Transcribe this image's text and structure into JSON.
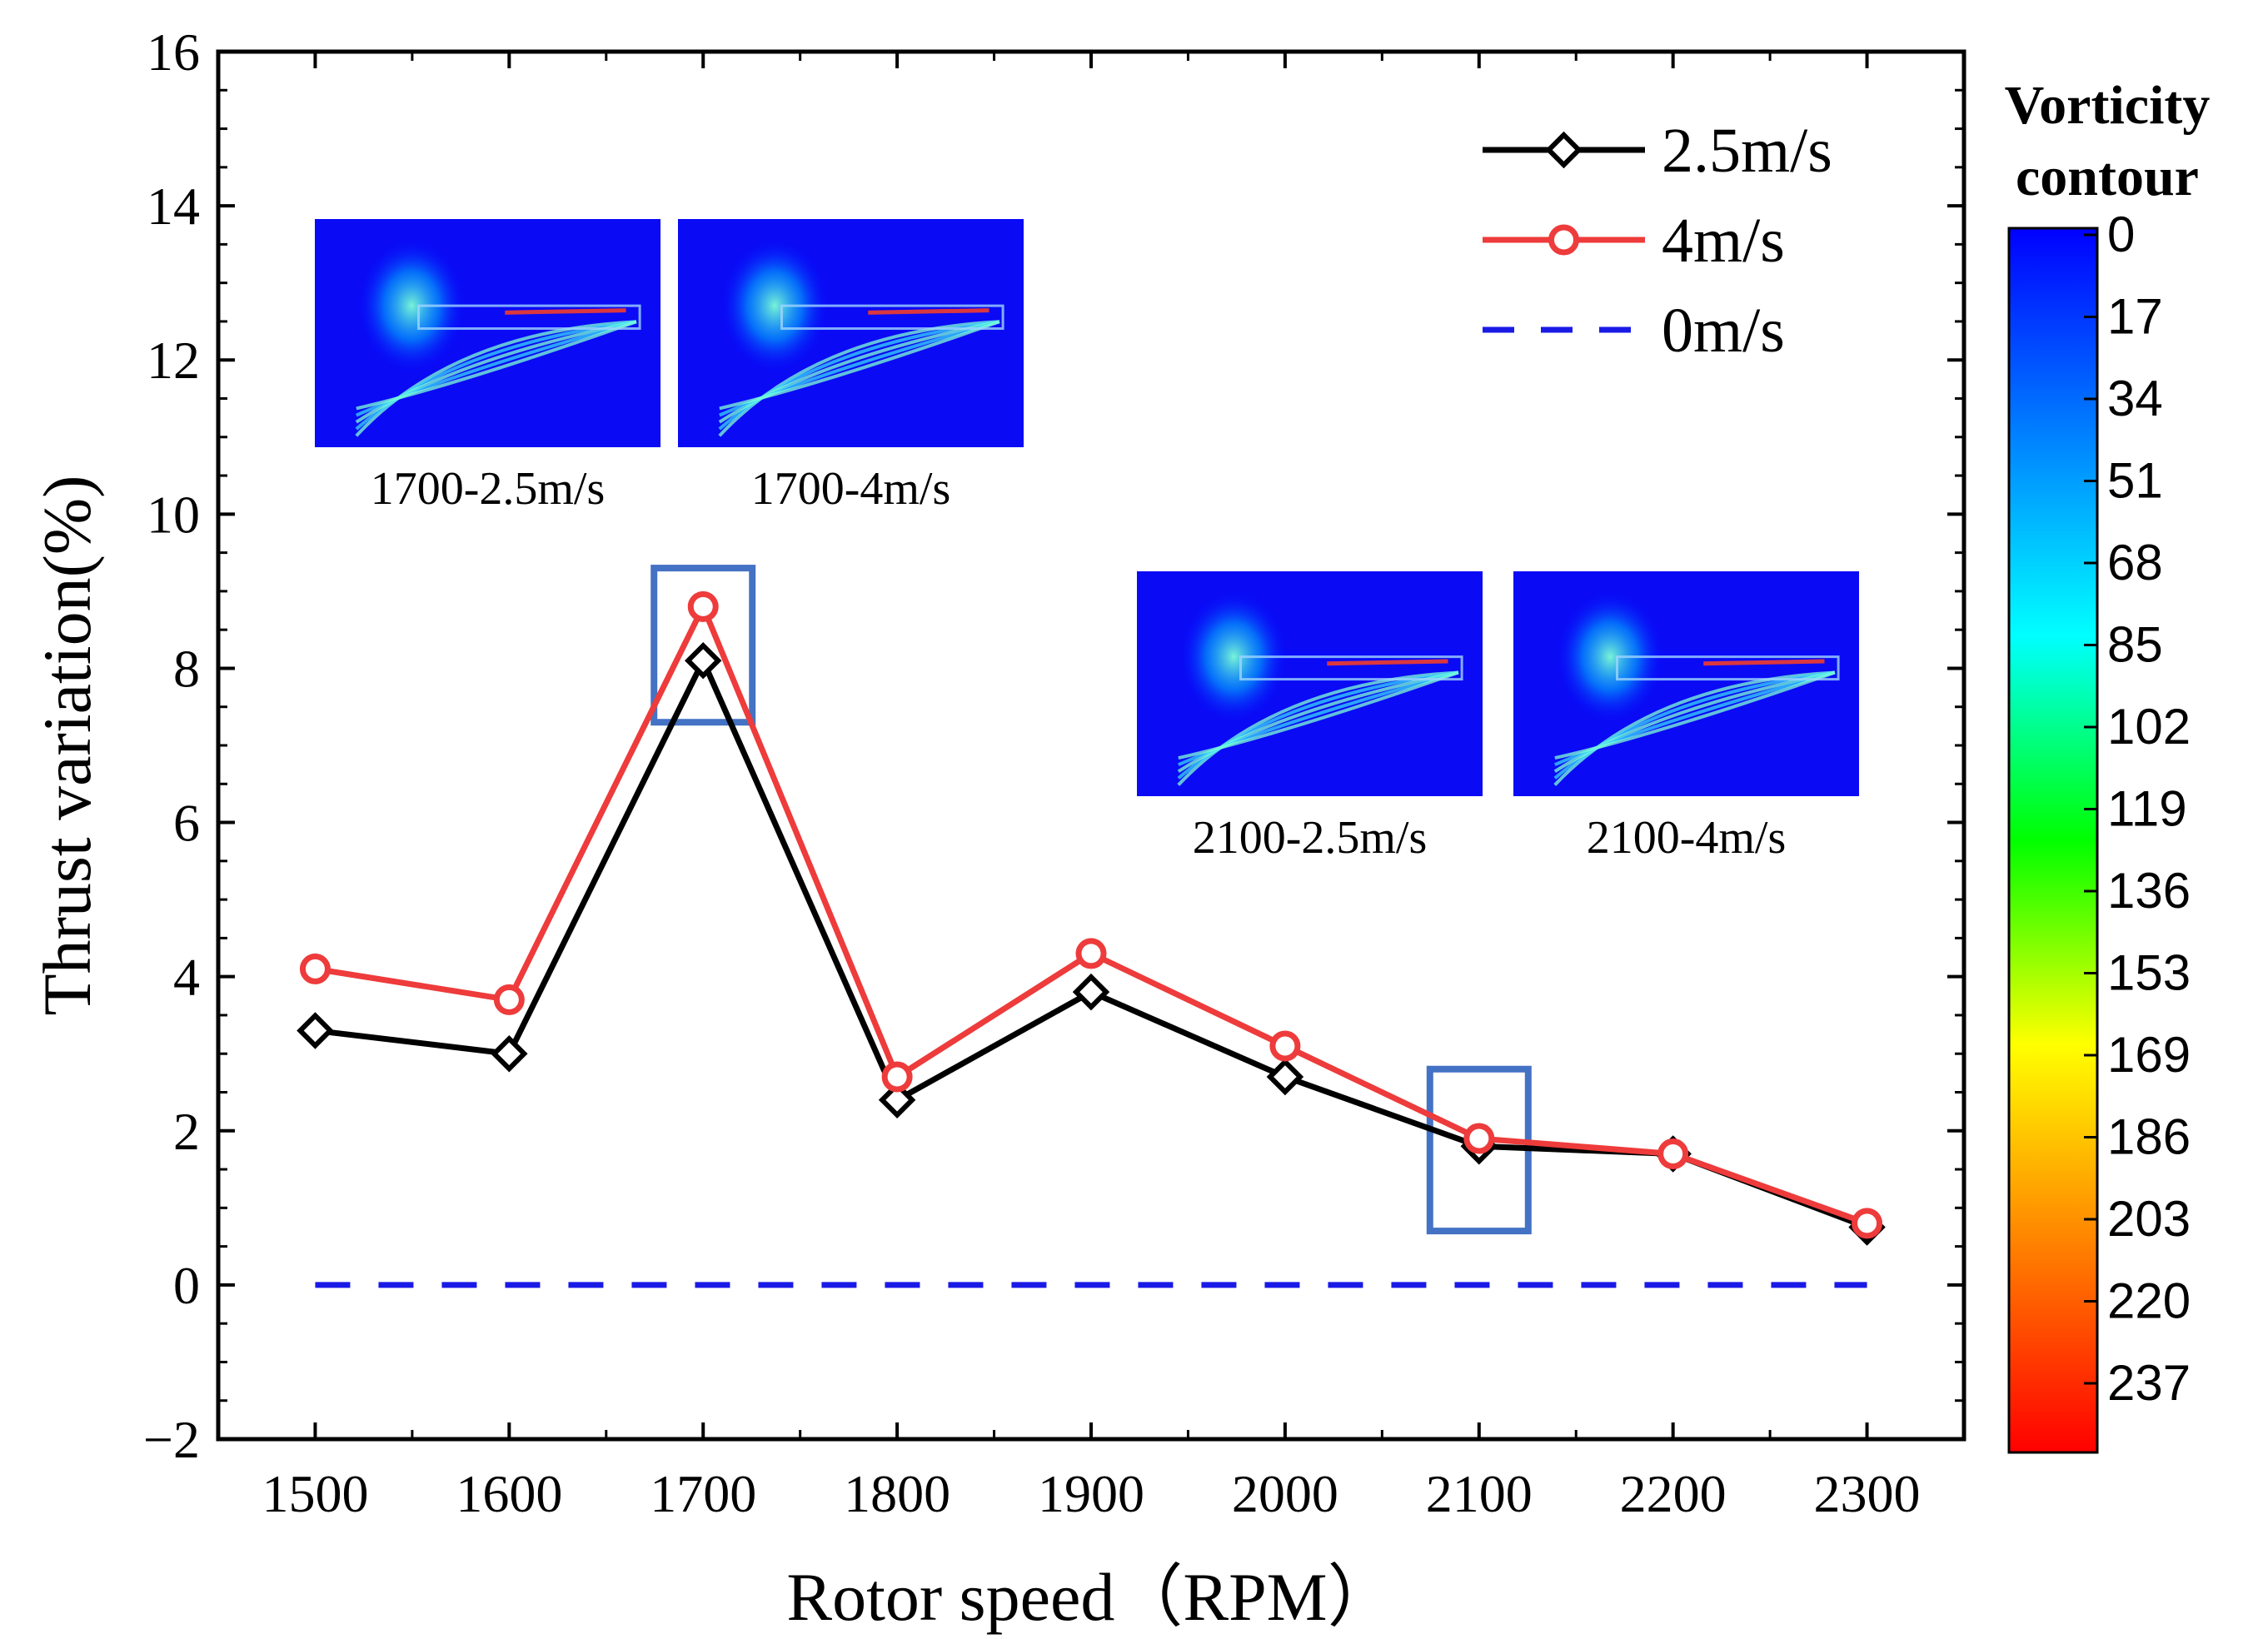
{
  "chart_data": {
    "type": "line",
    "xlabel": "Rotor speed（RPM）",
    "ylabel": "Thrust variation(%)",
    "x": [
      1500,
      1600,
      1700,
      1800,
      1900,
      2000,
      2100,
      2200,
      2300
    ],
    "xlim": [
      1450,
      2350
    ],
    "ylim": [
      -2,
      16
    ],
    "xticks": [
      "1500",
      "1600",
      "1700",
      "1800",
      "1900",
      "2000",
      "2100",
      "2200",
      "2300"
    ],
    "yticks": [
      "−2",
      "0",
      "2",
      "4",
      "6",
      "8",
      "10",
      "12",
      "14",
      "16"
    ],
    "grid": false,
    "legend_position": "top-right",
    "series": [
      {
        "name": "2.5m/s",
        "color": "#000000",
        "marker": "diamond",
        "style": "solid",
        "values": [
          3.3,
          3.0,
          8.1,
          2.4,
          3.8,
          2.7,
          1.8,
          1.7,
          0.75
        ]
      },
      {
        "name": "4m/s",
        "color": "#ee3b3b",
        "marker": "circle",
        "style": "solid",
        "values": [
          4.1,
          3.7,
          8.8,
          2.7,
          4.3,
          3.1,
          1.9,
          1.7,
          0.8
        ]
      },
      {
        "name": "0m/s",
        "color": "#1a1ae6",
        "marker": "none",
        "style": "dashed",
        "values": [
          0,
          0,
          0,
          0,
          0,
          0,
          0,
          0,
          0
        ]
      }
    ],
    "highlight_boxes": [
      {
        "x": 1700,
        "y_range": [
          7.3,
          9.3
        ],
        "color": "#4472c4"
      },
      {
        "x": 2100,
        "y_range": [
          0.7,
          2.8
        ],
        "color": "#4472c4"
      }
    ],
    "insets": [
      {
        "caption": "1700-2.5m/s"
      },
      {
        "caption": "1700-4m/s"
      },
      {
        "caption": "2100-2.5m/s"
      },
      {
        "caption": "2100-4m/s"
      }
    ],
    "colorbar": {
      "title_line1": "Vorticity",
      "title_line2": "contour",
      "labels": [
        "0",
        "17",
        "34",
        "51",
        "68",
        "85",
        "102",
        "119",
        "136",
        "153",
        "169",
        "186",
        "203",
        "220",
        "237"
      ],
      "colors": [
        "#0000ff",
        "#007fff",
        "#00ffff",
        "#00ff00",
        "#ffff00",
        "#ff7f00",
        "#ff0000"
      ]
    }
  }
}
